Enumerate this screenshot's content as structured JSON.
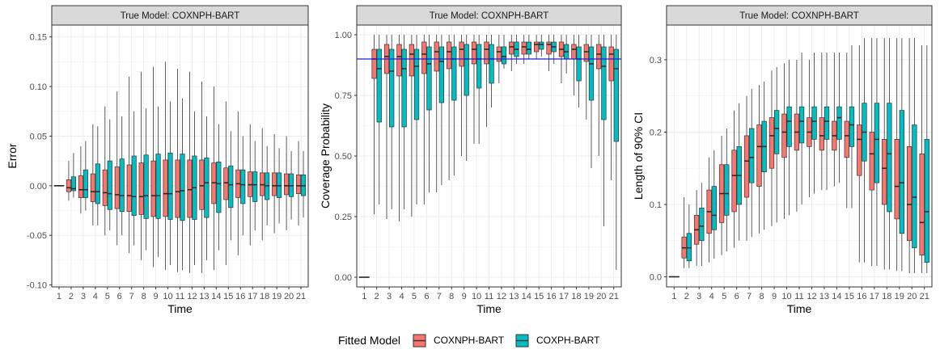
{
  "colors": {
    "COXNPH-BART": "#F8766D",
    "COXPH-BART": "#00BFC4",
    "reference_line": "#1f1fd6",
    "strip_fill": "#d9d9d9",
    "grid": "#ebebeb"
  },
  "legend": {
    "title": "Fitted Model",
    "items": [
      {
        "label": "COXNPH-BART",
        "color": "#F8766D"
      },
      {
        "label": "COXPH-BART",
        "color": "#00BFC4"
      }
    ]
  },
  "chart_data": [
    {
      "type": "boxplot",
      "strip": "True Model: COXNPH-BART",
      "xlabel": "Time",
      "ylabel": "Error",
      "categories": [
        "1",
        "2",
        "3",
        "4",
        "5",
        "6",
        "7",
        "8",
        "9",
        "10",
        "11",
        "12",
        "13",
        "14",
        "15",
        "16",
        "17",
        "18",
        "19",
        "20",
        "21"
      ],
      "ylim": [
        -0.102,
        0.162
      ],
      "yticks": [
        -0.1,
        -0.05,
        0.0,
        0.05,
        0.1,
        0.15
      ],
      "ytick_labels": [
        "-0.10",
        "-0.05",
        "0.00",
        "0.05",
        "0.10",
        "0.15"
      ],
      "grid": true,
      "series": [
        {
          "name": "COXNPH-BART",
          "boxes": [
            [
              0,
              0,
              0,
              0,
              0
            ],
            [
              -0.015,
              -0.006,
              -0.002,
              0.006,
              0.025
            ],
            [
              -0.028,
              -0.012,
              -0.004,
              0.01,
              0.04
            ],
            [
              -0.04,
              -0.016,
              -0.006,
              0.012,
              0.062
            ],
            [
              -0.05,
              -0.02,
              -0.007,
              0.016,
              0.08
            ],
            [
              -0.06,
              -0.023,
              -0.009,
              0.019,
              0.095
            ],
            [
              -0.068,
              -0.026,
              -0.01,
              0.021,
              0.11
            ],
            [
              -0.075,
              -0.029,
              -0.011,
              0.023,
              0.115
            ],
            [
              -0.082,
              -0.031,
              -0.01,
              0.025,
              0.12
            ],
            [
              -0.085,
              -0.031,
              -0.008,
              0.026,
              0.125
            ],
            [
              -0.087,
              -0.032,
              -0.006,
              0.026,
              0.118
            ],
            [
              -0.088,
              -0.032,
              -0.004,
              0.026,
              0.115
            ],
            [
              -0.088,
              -0.024,
              0.0,
              0.026,
              0.105
            ],
            [
              -0.085,
              -0.018,
              0.003,
              0.023,
              0.1
            ],
            [
              -0.08,
              -0.014,
              0.003,
              0.018,
              0.085
            ],
            [
              -0.07,
              -0.012,
              0.002,
              0.016,
              0.075
            ],
            [
              -0.06,
              -0.011,
              0.001,
              0.014,
              0.062
            ],
            [
              -0.055,
              -0.01,
              0.001,
              0.013,
              0.058
            ],
            [
              -0.048,
              -0.01,
              0.0,
              0.013,
              0.052
            ],
            [
              -0.045,
              -0.009,
              0.0,
              0.012,
              0.05
            ],
            [
              -0.04,
              -0.008,
              0.0,
              0.011,
              0.045
            ]
          ]
        },
        {
          "name": "COXPH-BART",
          "boxes": [
            [
              0,
              0,
              0,
              0,
              0
            ],
            [
              -0.012,
              -0.005,
              -0.003,
              0.009,
              0.033
            ],
            [
              -0.025,
              -0.012,
              -0.004,
              0.016,
              0.045
            ],
            [
              -0.04,
              -0.018,
              -0.006,
              0.022,
              0.06
            ],
            [
              -0.045,
              -0.024,
              -0.008,
              0.025,
              0.067
            ],
            [
              -0.05,
              -0.026,
              -0.01,
              0.027,
              0.07
            ],
            [
              -0.06,
              -0.03,
              -0.011,
              0.03,
              0.075
            ],
            [
              -0.065,
              -0.033,
              -0.01,
              0.031,
              0.078
            ],
            [
              -0.072,
              -0.033,
              -0.01,
              0.032,
              0.08
            ],
            [
              -0.08,
              -0.034,
              -0.008,
              0.033,
              0.085
            ],
            [
              -0.085,
              -0.035,
              -0.005,
              0.032,
              0.088
            ],
            [
              -0.08,
              -0.034,
              -0.002,
              0.03,
              0.075
            ],
            [
              -0.075,
              -0.032,
              0.003,
              0.028,
              0.07
            ],
            [
              -0.065,
              -0.027,
              0.002,
              0.024,
              0.062
            ],
            [
              -0.055,
              -0.022,
              0.001,
              0.02,
              0.055
            ],
            [
              -0.05,
              -0.018,
              0.001,
              0.016,
              0.05
            ],
            [
              -0.045,
              -0.016,
              0.001,
              0.014,
              0.045
            ],
            [
              -0.04,
              -0.014,
              0.0,
              0.013,
              0.04
            ],
            [
              -0.038,
              -0.012,
              0.0,
              0.013,
              0.038
            ],
            [
              -0.034,
              -0.011,
              0.0,
              0.012,
              0.035
            ],
            [
              -0.032,
              -0.01,
              0.0,
              0.011,
              0.035
            ]
          ]
        }
      ]
    },
    {
      "type": "boxplot",
      "strip": "True Model: COXNPH-BART",
      "xlabel": "Time",
      "ylabel": "Coverage Probability",
      "categories": [
        "1",
        "2",
        "3",
        "4",
        "5",
        "6",
        "7",
        "8",
        "9",
        "10",
        "11",
        "12",
        "13",
        "14",
        "15",
        "16",
        "17",
        "18",
        "19",
        "20",
        "21"
      ],
      "ylim": [
        -0.04,
        1.04
      ],
      "yticks": [
        0.0,
        0.25,
        0.5,
        0.75,
        1.0
      ],
      "ytick_labels": [
        "0.00",
        "0.25",
        "0.50",
        "0.75",
        "1.00"
      ],
      "grid": true,
      "reference_line_y": 0.9,
      "series": [
        {
          "name": "COXNPH-BART",
          "boxes": [
            [
              0,
              0,
              0,
              0,
              0
            ],
            [
              0.26,
              0.82,
              0.9,
              0.94,
              1.0
            ],
            [
              0.24,
              0.84,
              0.91,
              0.96,
              1.0
            ],
            [
              0.23,
              0.83,
              0.91,
              0.96,
              1.0
            ],
            [
              0.25,
              0.83,
              0.92,
              0.96,
              1.0
            ],
            [
              0.3,
              0.84,
              0.92,
              0.97,
              1.0
            ],
            [
              0.35,
              0.85,
              0.93,
              0.97,
              1.0
            ],
            [
              0.4,
              0.86,
              0.93,
              0.97,
              1.0
            ],
            [
              0.5,
              0.87,
              0.94,
              0.97,
              1.0
            ],
            [
              0.55,
              0.88,
              0.94,
              0.97,
              1.0
            ],
            [
              0.62,
              0.88,
              0.94,
              0.97,
              1.0
            ],
            [
              0.8,
              0.89,
              0.93,
              0.95,
              1.0
            ],
            [
              0.85,
              0.92,
              0.95,
              0.97,
              1.0
            ],
            [
              0.88,
              0.92,
              0.95,
              0.97,
              1.0
            ],
            [
              0.9,
              0.93,
              0.96,
              0.97,
              1.0
            ],
            [
              0.85,
              0.92,
              0.96,
              0.97,
              1.0
            ],
            [
              0.8,
              0.91,
              0.94,
              0.97,
              1.0
            ],
            [
              0.75,
              0.9,
              0.94,
              0.96,
              1.0
            ],
            [
              0.65,
              0.89,
              0.93,
              0.96,
              1.0
            ],
            [
              0.5,
              0.86,
              0.92,
              0.96,
              1.0
            ],
            [
              0.4,
              0.81,
              0.92,
              0.95,
              1.0
            ]
          ]
        },
        {
          "name": "COXPH-BART",
          "boxes": [
            [
              0,
              0,
              0,
              0,
              0
            ],
            [
              0.3,
              0.64,
              0.86,
              0.94,
              1.0
            ],
            [
              0.28,
              0.62,
              0.85,
              0.94,
              1.0
            ],
            [
              0.28,
              0.62,
              0.86,
              0.94,
              1.0
            ],
            [
              0.3,
              0.65,
              0.87,
              0.94,
              1.0
            ],
            [
              0.35,
              0.69,
              0.88,
              0.95,
              1.0
            ],
            [
              0.38,
              0.72,
              0.89,
              0.95,
              1.0
            ],
            [
              0.42,
              0.73,
              0.9,
              0.95,
              1.0
            ],
            [
              0.48,
              0.75,
              0.9,
              0.96,
              1.0
            ],
            [
              0.55,
              0.78,
              0.9,
              0.96,
              1.0
            ],
            [
              0.7,
              0.8,
              0.9,
              0.96,
              1.0
            ],
            [
              0.86,
              0.88,
              0.91,
              0.95,
              1.0
            ],
            [
              0.88,
              0.91,
              0.94,
              0.97,
              1.0
            ],
            [
              0.9,
              0.92,
              0.94,
              0.97,
              1.0
            ],
            [
              0.91,
              0.94,
              0.96,
              0.97,
              1.0
            ],
            [
              0.88,
              0.93,
              0.95,
              0.97,
              1.0
            ],
            [
              0.84,
              0.9,
              0.93,
              0.96,
              1.0
            ],
            [
              0.7,
              0.81,
              0.9,
              0.95,
              1.0
            ],
            [
              0.45,
              0.73,
              0.88,
              0.95,
              1.0
            ],
            [
              0.21,
              0.65,
              0.87,
              0.95,
              1.0
            ],
            [
              0.03,
              0.56,
              0.86,
              0.94,
              1.0
            ]
          ]
        }
      ]
    },
    {
      "type": "boxplot",
      "strip": "True Model: COXNPH-BART",
      "xlabel": "Time",
      "ylabel": "Length of 90% CI",
      "categories": [
        "1",
        "2",
        "3",
        "4",
        "5",
        "6",
        "7",
        "8",
        "9",
        "10",
        "11",
        "12",
        "13",
        "14",
        "15",
        "16",
        "17",
        "18",
        "19",
        "20",
        "21"
      ],
      "ylim": [
        -0.014,
        0.348
      ],
      "yticks": [
        0.0,
        0.1,
        0.2,
        0.3
      ],
      "ytick_labels": [
        "0.0",
        "0.1",
        "0.2",
        "0.3"
      ],
      "grid": true,
      "series": [
        {
          "name": "COXNPH-BART",
          "boxes": [
            [
              0,
              0,
              0,
              0,
              0
            ],
            [
              0.012,
              0.026,
              0.04,
              0.055,
              0.11
            ],
            [
              0.015,
              0.045,
              0.065,
              0.085,
              0.12
            ],
            [
              0.02,
              0.06,
              0.09,
              0.12,
              0.165
            ],
            [
              0.03,
              0.075,
              0.115,
              0.155,
              0.195
            ],
            [
              0.04,
              0.09,
              0.14,
              0.175,
              0.23
            ],
            [
              0.05,
              0.11,
              0.16,
              0.195,
              0.25
            ],
            [
              0.06,
              0.125,
              0.18,
              0.21,
              0.265
            ],
            [
              0.07,
              0.15,
              0.195,
              0.22,
              0.285
            ],
            [
              0.08,
              0.165,
              0.2,
              0.225,
              0.295
            ],
            [
              0.09,
              0.175,
              0.2,
              0.225,
              0.3
            ],
            [
              0.11,
              0.18,
              0.2,
              0.22,
              0.3
            ],
            [
              0.12,
              0.175,
              0.195,
              0.22,
              0.31
            ],
            [
              0.125,
              0.175,
              0.195,
              0.215,
              0.31
            ],
            [
              0.095,
              0.165,
              0.195,
              0.215,
              0.31
            ],
            [
              0.02,
              0.14,
              0.19,
              0.21,
              0.32
            ],
            [
              0.015,
              0.12,
              0.17,
              0.2,
              0.33
            ],
            [
              0.01,
              0.1,
              0.15,
              0.19,
              0.33
            ],
            [
              0.008,
              0.08,
              0.125,
              0.19,
              0.33
            ],
            [
              0.005,
              0.05,
              0.1,
              0.18,
              0.33
            ],
            [
              0.005,
              0.03,
              0.075,
              0.17,
              0.32
            ]
          ]
        },
        {
          "name": "COXPH-BART",
          "boxes": [
            [
              0,
              0,
              0,
              0,
              0
            ],
            [
              0.012,
              0.022,
              0.04,
              0.06,
              0.1
            ],
            [
              0.015,
              0.05,
              0.07,
              0.095,
              0.13
            ],
            [
              0.025,
              0.065,
              0.085,
              0.125,
              0.175
            ],
            [
              0.035,
              0.085,
              0.115,
              0.155,
              0.205
            ],
            [
              0.05,
              0.1,
              0.14,
              0.18,
              0.24
            ],
            [
              0.055,
              0.13,
              0.165,
              0.205,
              0.26
            ],
            [
              0.065,
              0.145,
              0.18,
              0.215,
              0.27
            ],
            [
              0.075,
              0.17,
              0.205,
              0.23,
              0.29
            ],
            [
              0.085,
              0.18,
              0.215,
              0.235,
              0.3
            ],
            [
              0.1,
              0.185,
              0.215,
              0.235,
              0.31
            ],
            [
              0.115,
              0.19,
              0.215,
              0.235,
              0.31
            ],
            [
              0.12,
              0.19,
              0.215,
              0.235,
              0.31
            ],
            [
              0.13,
              0.19,
              0.22,
              0.235,
              0.31
            ],
            [
              0.095,
              0.18,
              0.21,
              0.235,
              0.32
            ],
            [
              0.02,
              0.16,
              0.2,
              0.24,
              0.33
            ],
            [
              0.015,
              0.13,
              0.19,
              0.24,
              0.33
            ],
            [
              0.01,
              0.09,
              0.17,
              0.24,
              0.33
            ],
            [
              0.008,
              0.06,
              0.13,
              0.23,
              0.33
            ],
            [
              0.005,
              0.04,
              0.11,
              0.21,
              0.33
            ],
            [
              0.005,
              0.02,
              0.09,
              0.19,
              0.32
            ]
          ]
        }
      ]
    }
  ]
}
